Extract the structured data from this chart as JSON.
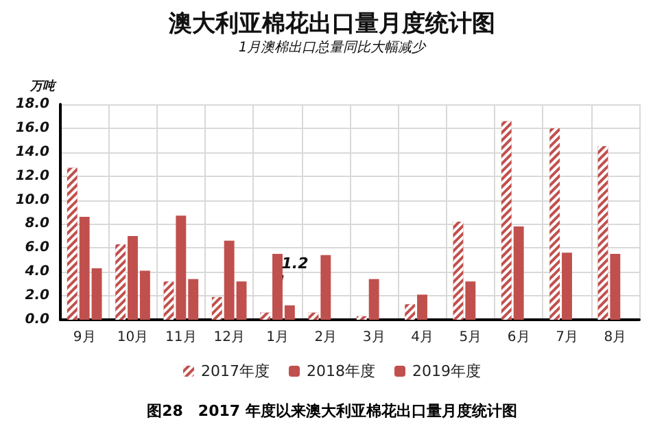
{
  "chart_data": {
    "type": "bar",
    "title": "澳大利亚棉花出口量月度统计图",
    "subtitle": "1月澳棉出口总量同比大幅减少",
    "ylabel": "万吨",
    "categories": [
      "9月",
      "10月",
      "11月",
      "12月",
      "1月",
      "2月",
      "3月",
      "4月",
      "5月",
      "6月",
      "7月",
      "8月"
    ],
    "series": [
      {
        "name": "2017年度",
        "color": "#c0504d",
        "values": [
          12.7,
          6.3,
          3.2,
          1.9,
          0.6,
          0.6,
          0.3,
          1.3,
          8.2,
          16.6,
          16.0,
          14.5
        ]
      },
      {
        "name": "2018年度",
        "color": "#c0504d",
        "values": [
          8.6,
          7.0,
          8.7,
          6.6,
          5.5,
          5.4,
          3.4,
          2.1,
          3.2,
          7.8,
          5.6,
          5.5
        ]
      },
      {
        "name": "2019年度",
        "color": "#c0504d",
        "values": [
          4.3,
          4.1,
          3.4,
          3.2,
          1.2,
          null,
          null,
          null,
          null,
          null,
          null,
          null
        ]
      }
    ],
    "ylim": [
      0,
      18
    ],
    "yticks": [
      {
        "value": 0,
        "label": "0.0"
      },
      {
        "value": 2,
        "label": "2.0"
      },
      {
        "value": 4,
        "label": "4.0"
      },
      {
        "value": 6,
        "label": "6.0"
      },
      {
        "value": 8,
        "label": "8.0"
      },
      {
        "value": 10,
        "label": "10.0"
      },
      {
        "value": 12,
        "label": "12.0"
      },
      {
        "value": 14,
        "label": "14.0"
      },
      {
        "value": 16,
        "label": "16.0"
      },
      {
        "value": 18,
        "label": "18.0"
      }
    ],
    "grid": true,
    "legend": "bottom",
    "annotations": [
      {
        "text": "1.2",
        "x": "1月",
        "y": 1.2
      },
      "图28　2017 年度以来澳大利亚棉花出口量月度统计图"
    ]
  }
}
